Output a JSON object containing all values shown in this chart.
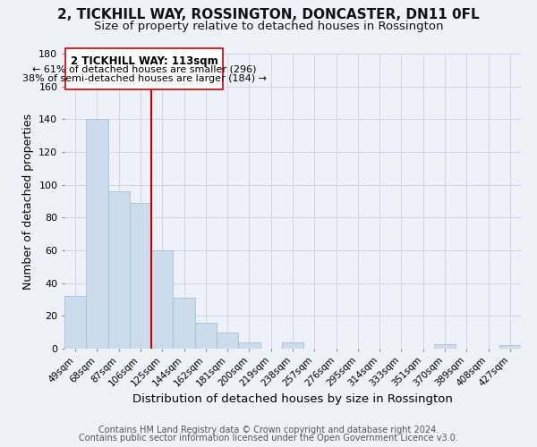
{
  "title": "2, TICKHILL WAY, ROSSINGTON, DONCASTER, DN11 0FL",
  "subtitle": "Size of property relative to detached houses in Rossington",
  "xlabel": "Distribution of detached houses by size in Rossington",
  "ylabel": "Number of detached properties",
  "bar_labels": [
    "49sqm",
    "68sqm",
    "87sqm",
    "106sqm",
    "125sqm",
    "144sqm",
    "162sqm",
    "181sqm",
    "200sqm",
    "219sqm",
    "238sqm",
    "257sqm",
    "276sqm",
    "295sqm",
    "314sqm",
    "333sqm",
    "351sqm",
    "370sqm",
    "389sqm",
    "408sqm",
    "427sqm"
  ],
  "bar_values": [
    32,
    140,
    96,
    89,
    60,
    31,
    16,
    10,
    4,
    0,
    4,
    0,
    0,
    0,
    0,
    0,
    0,
    3,
    0,
    0,
    2
  ],
  "bar_color": "#cddcec",
  "bar_edge_color": "#a8c0d8",
  "vline_x": 3.5,
  "vline_color": "#cc0000",
  "ylim": [
    0,
    180
  ],
  "yticks": [
    0,
    20,
    40,
    60,
    80,
    100,
    120,
    140,
    160,
    180
  ],
  "annotation_title": "2 TICKHILL WAY: 113sqm",
  "annotation_line1": "← 61% of detached houses are smaller (296)",
  "annotation_line2": "38% of semi-detached houses are larger (184) →",
  "annotation_box_color": "#ffffff",
  "annotation_box_edge": "#cc0000",
  "footer1": "Contains HM Land Registry data © Crown copyright and database right 2024.",
  "footer2": "Contains public sector information licensed under the Open Government Licence v3.0.",
  "title_fontsize": 11,
  "subtitle_fontsize": 9.5,
  "xlabel_fontsize": 9.5,
  "ylabel_fontsize": 9,
  "footer_fontsize": 7,
  "annotation_fontsize": 8.5,
  "grid_color": "#d0d8e8",
  "background_color": "#eef2f8"
}
